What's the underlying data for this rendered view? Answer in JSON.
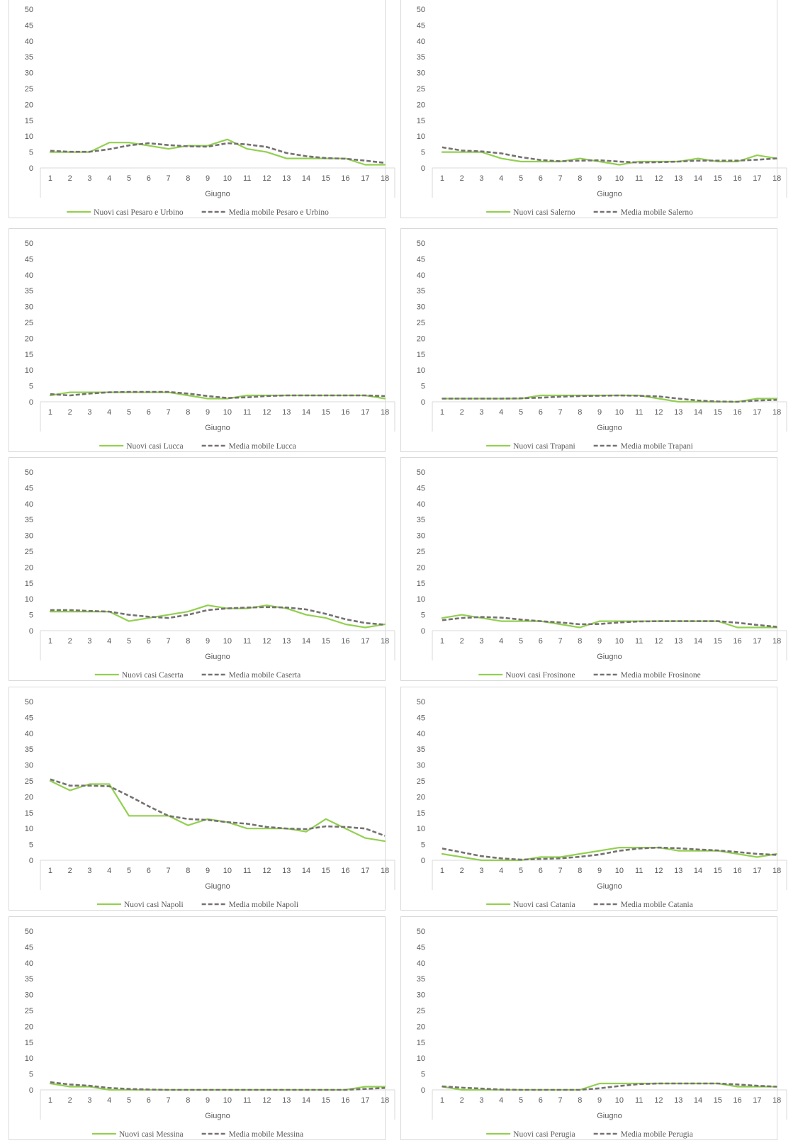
{
  "colors": {
    "new_cases": "#92d050",
    "moving_average": "#767171",
    "axis": "#d9d9d9",
    "text": "#595959"
  },
  "chart_data": [
    {
      "type": "line",
      "xlabel": "Giugno",
      "x": [
        1,
        2,
        3,
        4,
        5,
        6,
        7,
        8,
        9,
        10,
        11,
        12,
        13,
        14,
        15,
        16,
        17,
        18
      ],
      "ylim": [
        0,
        50
      ],
      "yticks": [
        0,
        5,
        10,
        15,
        20,
        25,
        30,
        35,
        40,
        45,
        50
      ],
      "legend_position": "bottom",
      "series": [
        {
          "name": "Nuovi casi Pesaro e Urbino",
          "style": "solid",
          "values": [
            5,
            5,
            5,
            8,
            8,
            7,
            6,
            7,
            7,
            9,
            6,
            5,
            3,
            3,
            3,
            3,
            1,
            1
          ]
        },
        {
          "name": "Media mobile Pesaro e Urbino",
          "style": "dashed",
          "values": [
            5.4,
            5.1,
            5.1,
            5.9,
            7.1,
            7.8,
            7.2,
            6.8,
            6.7,
            7.8,
            7.4,
            6.6,
            4.7,
            3.7,
            3.1,
            2.9,
            2.3,
            1.6
          ]
        }
      ]
    },
    {
      "type": "line",
      "xlabel": "Giugno",
      "x": [
        1,
        2,
        3,
        4,
        5,
        6,
        7,
        8,
        9,
        10,
        11,
        12,
        13,
        14,
        15,
        16,
        17,
        18
      ],
      "ylim": [
        0,
        50
      ],
      "yticks": [
        0,
        5,
        10,
        15,
        20,
        25,
        30,
        35,
        40,
        45,
        50
      ],
      "legend_position": "bottom",
      "series": [
        {
          "name": "Nuovi casi Salerno",
          "style": "solid",
          "values": [
            5,
            5,
            5,
            3,
            2,
            2,
            2,
            3,
            2,
            1,
            2,
            2,
            2,
            3,
            2,
            2,
            4,
            3
          ]
        },
        {
          "name": "Media mobile Salerno",
          "style": "dashed",
          "values": [
            6.5,
            5.5,
            5.2,
            4.6,
            3.4,
            2.5,
            2.1,
            2.3,
            2.4,
            2.0,
            1.7,
            1.8,
            2.0,
            2.3,
            2.3,
            2.3,
            2.6,
            3.0
          ]
        }
      ]
    },
    {
      "type": "line",
      "xlabel": "Giugno",
      "x": [
        1,
        2,
        3,
        4,
        5,
        6,
        7,
        8,
        9,
        10,
        11,
        12,
        13,
        14,
        15,
        16,
        17,
        18
      ],
      "ylim": [
        0,
        50
      ],
      "yticks": [
        0,
        5,
        10,
        15,
        20,
        25,
        30,
        35,
        40,
        45,
        50
      ],
      "legend_position": "bottom",
      "series": [
        {
          "name": "Nuovi casi Lucca",
          "style": "solid",
          "values": [
            2,
            3,
            3,
            3,
            3,
            3,
            3,
            2,
            1,
            1,
            2,
            2,
            2,
            2,
            2,
            2,
            2,
            1
          ]
        },
        {
          "name": "Media mobile Lucca",
          "style": "dashed",
          "values": [
            2.4,
            2.0,
            2.6,
            3.0,
            3.1,
            3.1,
            3.1,
            2.6,
            1.8,
            1.2,
            1.4,
            1.8,
            2.0,
            2.0,
            2.0,
            2.0,
            2.0,
            1.8
          ]
        }
      ]
    },
    {
      "type": "line",
      "xlabel": "Giugno",
      "x": [
        1,
        2,
        3,
        4,
        5,
        6,
        7,
        8,
        9,
        10,
        11,
        12,
        13,
        14,
        15,
        16,
        17,
        18
      ],
      "ylim": [
        0,
        50
      ],
      "yticks": [
        0,
        5,
        10,
        15,
        20,
        25,
        30,
        35,
        40,
        45,
        50
      ],
      "legend_position": "bottom",
      "series": [
        {
          "name": "Nuovi casi Trapani",
          "style": "solid",
          "values": [
            1,
            1,
            1,
            1,
            1,
            2,
            2,
            2,
            2,
            2,
            2,
            1,
            0,
            0,
            0,
            0,
            1,
            1
          ]
        },
        {
          "name": "Media mobile Trapani",
          "style": "dashed",
          "values": [
            1.0,
            1.0,
            1.0,
            1.0,
            1.1,
            1.3,
            1.6,
            1.8,
            1.9,
            2.0,
            1.9,
            1.7,
            1.0,
            0.4,
            0.1,
            0.0,
            0.4,
            0.6
          ]
        }
      ]
    },
    {
      "type": "line",
      "xlabel": "Giugno",
      "x": [
        1,
        2,
        3,
        4,
        5,
        6,
        7,
        8,
        9,
        10,
        11,
        12,
        13,
        14,
        15,
        16,
        17,
        18
      ],
      "ylim": [
        0,
        50
      ],
      "yticks": [
        0,
        5,
        10,
        15,
        20,
        25,
        30,
        35,
        40,
        45,
        50
      ],
      "legend_position": "bottom",
      "series": [
        {
          "name": "Nuovi casi Caserta",
          "style": "solid",
          "values": [
            6,
            6,
            6,
            6,
            3,
            4,
            5,
            6,
            8,
            7,
            7,
            8,
            7,
            5,
            4,
            2,
            1,
            2
          ]
        },
        {
          "name": "Media mobile Caserta",
          "style": "dashed",
          "values": [
            6.5,
            6.5,
            6.2,
            6.0,
            5.0,
            4.4,
            4.0,
            5.0,
            6.5,
            7.0,
            7.3,
            7.4,
            7.3,
            6.7,
            5.3,
            3.6,
            2.4,
            1.9
          ]
        }
      ]
    },
    {
      "type": "line",
      "xlabel": "Giugno",
      "x": [
        1,
        2,
        3,
        4,
        5,
        6,
        7,
        8,
        9,
        10,
        11,
        12,
        13,
        14,
        15,
        16,
        17,
        18
      ],
      "ylim": [
        0,
        50
      ],
      "yticks": [
        0,
        5,
        10,
        15,
        20,
        25,
        30,
        35,
        40,
        45,
        50
      ],
      "legend_position": "bottom",
      "series": [
        {
          "name": "Nuovi casi Frosinone",
          "style": "solid",
          "values": [
            4,
            5,
            4,
            3,
            3,
            3,
            2,
            1,
            3,
            3,
            3,
            3,
            3,
            3,
            3,
            1,
            1,
            1
          ]
        },
        {
          "name": "Media mobile Frosinone",
          "style": "dashed",
          "values": [
            3.3,
            4.0,
            4.3,
            4.1,
            3.5,
            3.0,
            2.6,
            2.0,
            2.1,
            2.6,
            2.9,
            3.0,
            3.0,
            3.0,
            3.0,
            2.5,
            1.8,
            1.2
          ]
        }
      ]
    },
    {
      "type": "line",
      "xlabel": "Giugno",
      "x": [
        1,
        2,
        3,
        4,
        5,
        6,
        7,
        8,
        9,
        10,
        11,
        12,
        13,
        14,
        15,
        16,
        17,
        18
      ],
      "ylim": [
        0,
        50
      ],
      "yticks": [
        0,
        5,
        10,
        15,
        20,
        25,
        30,
        35,
        40,
        45,
        50
      ],
      "legend_position": "bottom",
      "series": [
        {
          "name": "Nuovi casi Napoli",
          "style": "solid",
          "values": [
            25,
            22,
            24,
            24,
            14,
            14,
            14,
            11,
            13,
            12,
            10,
            10,
            10,
            9,
            13,
            10,
            7,
            6
          ]
        },
        {
          "name": "Media mobile Napoli",
          "style": "dashed",
          "values": [
            25.5,
            23.5,
            23.5,
            23.3,
            20.3,
            17.0,
            14.0,
            13.0,
            12.7,
            12.0,
            11.5,
            10.5,
            10.0,
            9.8,
            10.7,
            10.5,
            10.0,
            7.7
          ]
        }
      ]
    },
    {
      "type": "line",
      "xlabel": "Giugno",
      "x": [
        1,
        2,
        3,
        4,
        5,
        6,
        7,
        8,
        9,
        10,
        11,
        12,
        13,
        14,
        15,
        16,
        17,
        18
      ],
      "ylim": [
        0,
        50
      ],
      "yticks": [
        0,
        5,
        10,
        15,
        20,
        25,
        30,
        35,
        40,
        45,
        50
      ],
      "legend_position": "bottom",
      "series": [
        {
          "name": "Nuovi casi Catania",
          "style": "solid",
          "values": [
            2,
            1,
            0,
            0,
            0,
            1,
            1,
            2,
            3,
            4,
            4,
            4,
            3,
            3,
            3,
            2,
            1,
            2
          ]
        },
        {
          "name": "Media mobile Catania",
          "style": "dashed",
          "values": [
            3.7,
            2.5,
            1.3,
            0.6,
            0.2,
            0.4,
            0.6,
            1.1,
            1.8,
            3.0,
            3.7,
            4.0,
            3.8,
            3.4,
            3.1,
            2.6,
            2.0,
            1.7
          ]
        }
      ]
    },
    {
      "type": "line",
      "xlabel": "Giugno",
      "x": [
        1,
        2,
        3,
        4,
        5,
        6,
        7,
        8,
        9,
        10,
        11,
        12,
        13,
        14,
        15,
        16,
        17,
        18
      ],
      "ylim": [
        0,
        50
      ],
      "yticks": [
        0,
        5,
        10,
        15,
        20,
        25,
        30,
        35,
        40,
        45,
        50
      ],
      "legend_position": "bottom",
      "series": [
        {
          "name": "Nuovi casi Messina",
          "style": "solid",
          "values": [
            2,
            1,
            1,
            0,
            0,
            0,
            0,
            0,
            0,
            0,
            0,
            0,
            0,
            0,
            0,
            0,
            1,
            1
          ]
        },
        {
          "name": "Media mobile Messina",
          "style": "dashed",
          "values": [
            2.4,
            1.7,
            1.3,
            0.6,
            0.3,
            0.1,
            0,
            0,
            0,
            0,
            0,
            0,
            0,
            0,
            0,
            0,
            0.3,
            0.6
          ]
        }
      ]
    },
    {
      "type": "line",
      "xlabel": "Giugno",
      "x": [
        1,
        2,
        3,
        4,
        5,
        6,
        7,
        8,
        9,
        10,
        11,
        12,
        13,
        14,
        15,
        16,
        17,
        18
      ],
      "ylim": [
        0,
        50
      ],
      "yticks": [
        0,
        5,
        10,
        15,
        20,
        25,
        30,
        35,
        40,
        45,
        50
      ],
      "legend_position": "bottom",
      "series": [
        {
          "name": "Nuovi casi Perugia",
          "style": "solid",
          "values": [
            1,
            0,
            0,
            0,
            0,
            0,
            0,
            0,
            2,
            2,
            2,
            2,
            2,
            2,
            2,
            1,
            1,
            1
          ]
        },
        {
          "name": "Media mobile Perugia",
          "style": "dashed",
          "values": [
            1.1,
            0.7,
            0.4,
            0.1,
            0,
            0,
            0,
            0,
            0.5,
            1.2,
            1.8,
            2.0,
            2.0,
            2.0,
            2.0,
            1.7,
            1.3,
            1.0
          ]
        }
      ]
    }
  ]
}
